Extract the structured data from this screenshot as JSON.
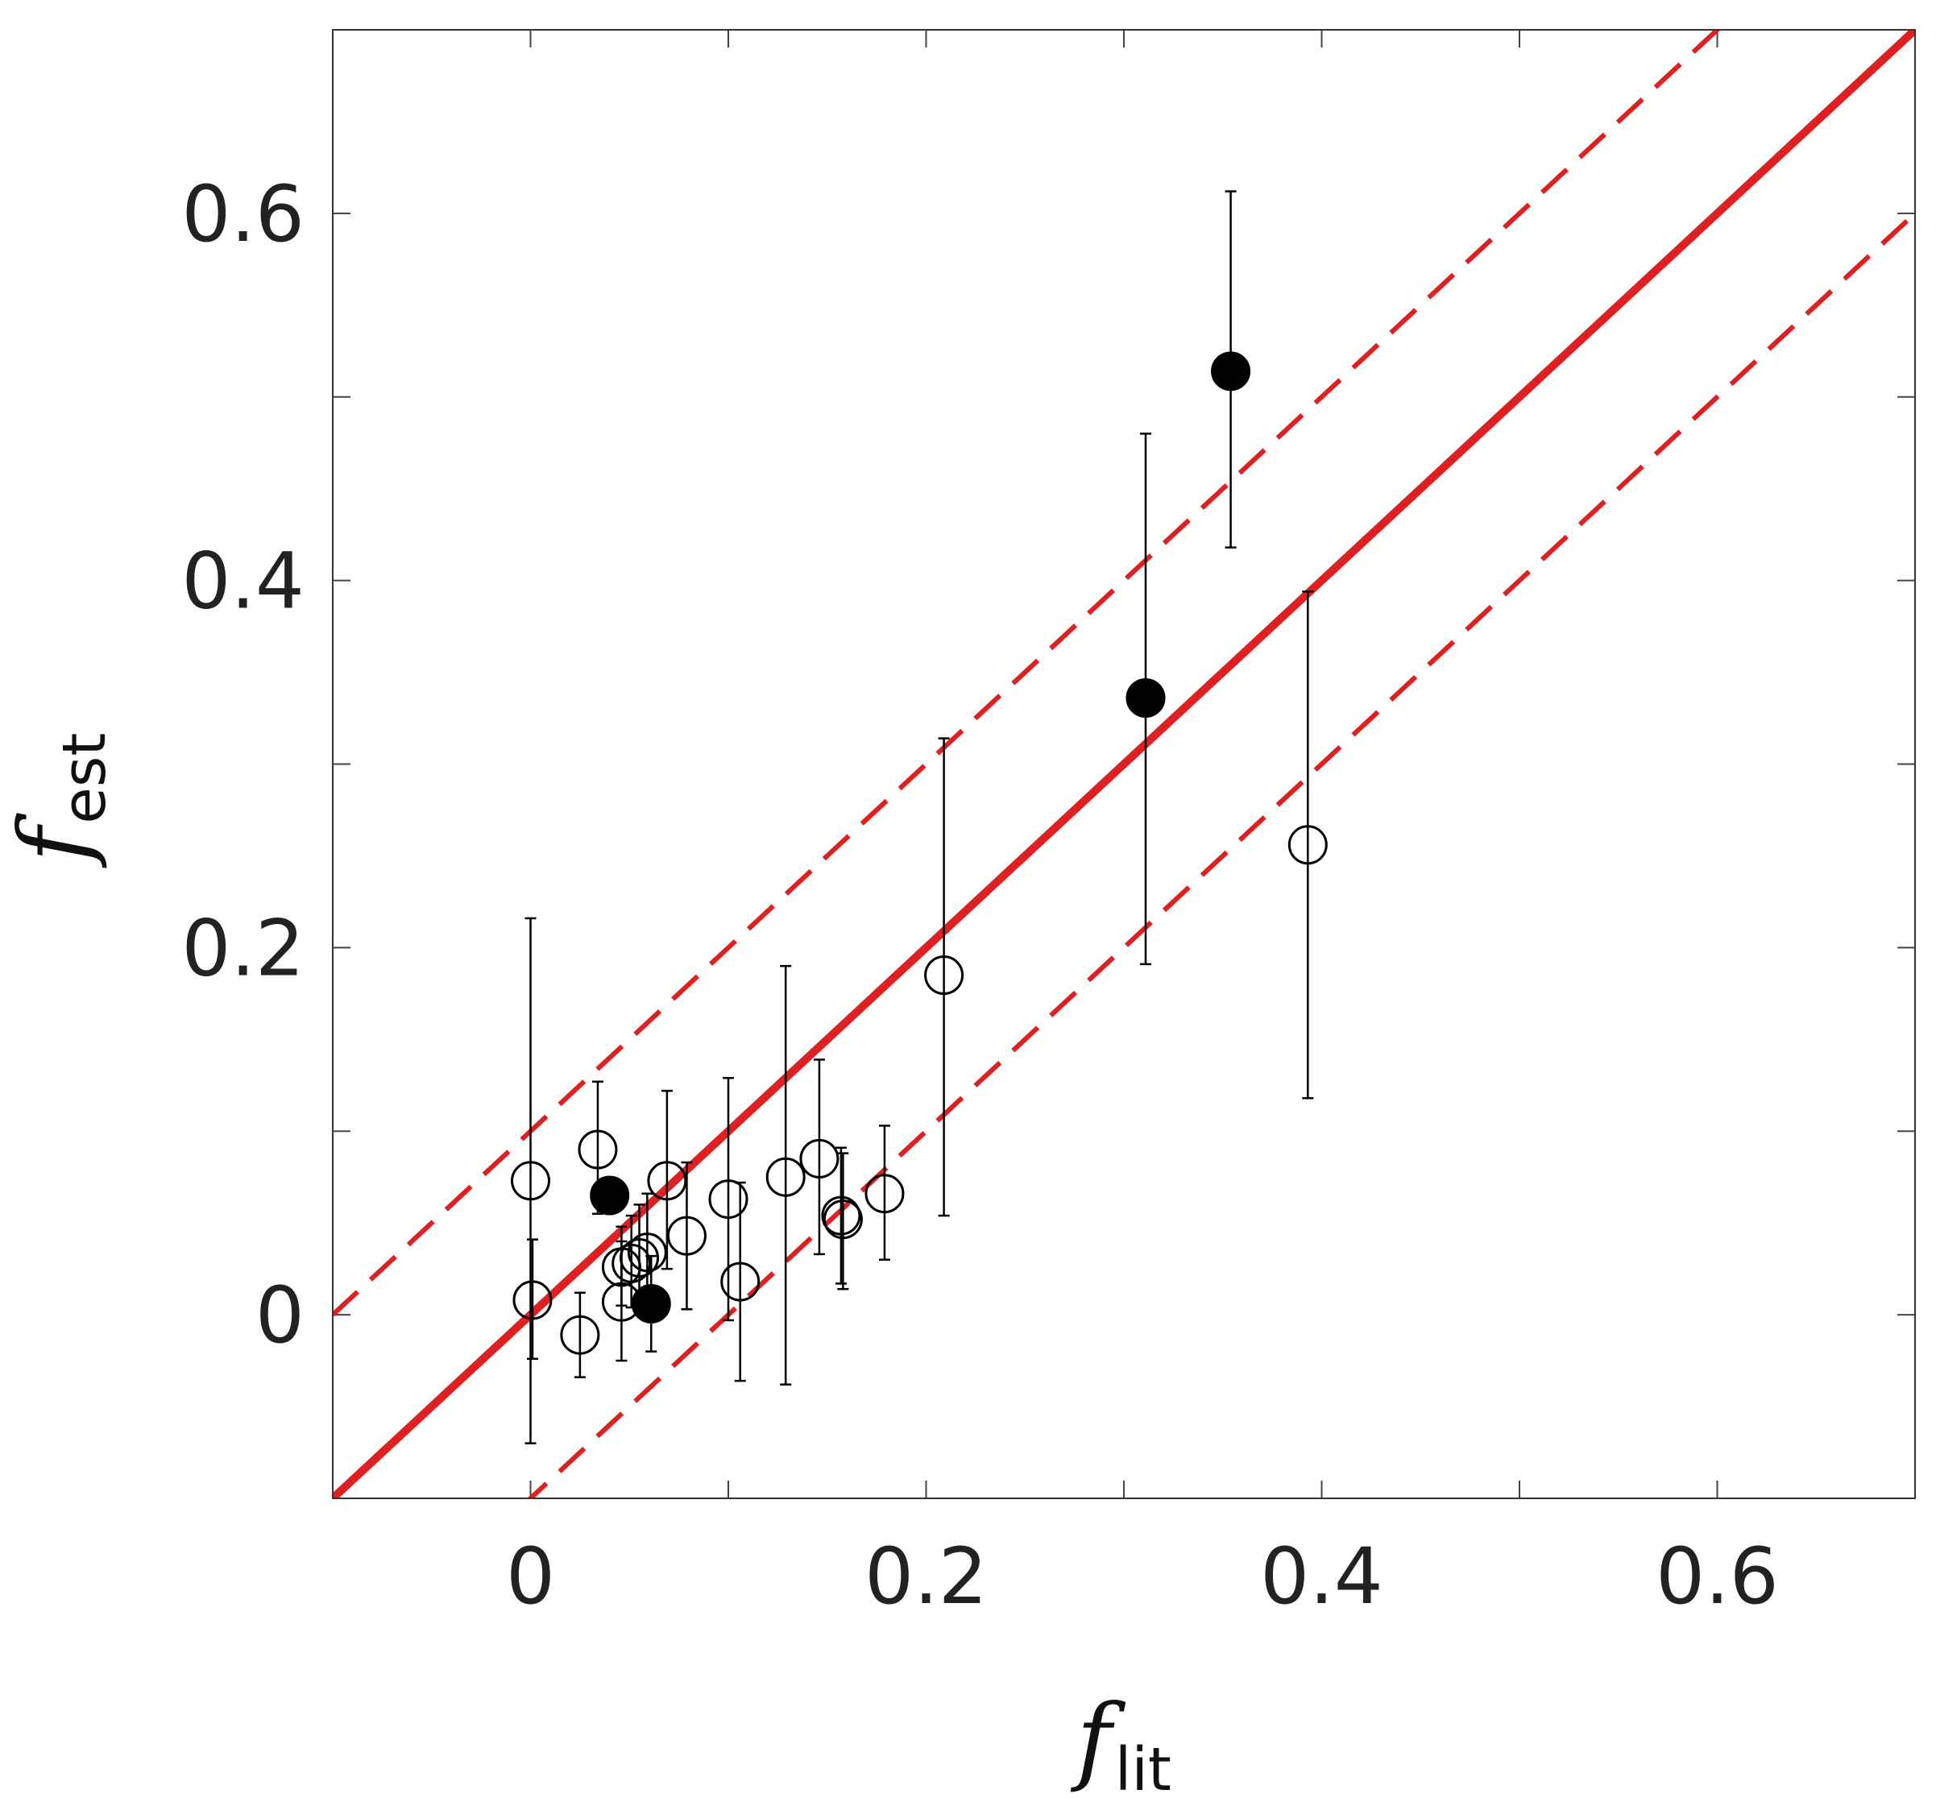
{
  "chart_data": {
    "type": "scatter",
    "title": "",
    "xlabel": {
      "main": "f",
      "sub": "lit"
    },
    "ylabel": {
      "main": "f",
      "sub": "est"
    },
    "xlim": [
      -0.1,
      0.7
    ],
    "ylim": [
      -0.1,
      0.7
    ],
    "xticks": [
      0,
      0.2,
      0.4,
      0.6
    ],
    "xtick_labels": [
      "0",
      "0.2",
      "0.4",
      "0.6"
    ],
    "yticks": [
      0,
      0.2,
      0.4,
      0.6
    ],
    "ytick_labels": [
      "0",
      "0.2",
      "0.4",
      "0.6"
    ],
    "minor_ticks": [
      0.1,
      0.3,
      0.5
    ],
    "grid": false,
    "legend": "none",
    "colors": {
      "reference": "#e02020",
      "points": "#000000"
    },
    "reference_lines": [
      {
        "kind": "identity",
        "offset": 0,
        "style": "solid"
      },
      {
        "kind": "identity",
        "offset": 0.1,
        "style": "dashed"
      },
      {
        "kind": "identity",
        "offset": -0.1,
        "style": "dashed"
      }
    ],
    "series": [
      {
        "marker": "open-circle",
        "points": [
          {
            "x": 0.0,
            "y": 0.073,
            "ylo": -0.07,
            "yhi": 0.216
          },
          {
            "x": 0.001,
            "y": 0.008,
            "ylo": -0.024,
            "yhi": 0.041
          },
          {
            "x": 0.025,
            "y": -0.011,
            "ylo": -0.034,
            "yhi": 0.012
          },
          {
            "x": 0.034,
            "y": 0.09,
            "ylo": 0.055,
            "yhi": 0.127
          },
          {
            "x": 0.046,
            "y": 0.026,
            "ylo": 0.005,
            "yhi": 0.048
          },
          {
            "x": 0.046,
            "y": 0.007,
            "ylo": -0.025,
            "yhi": 0.04
          },
          {
            "x": 0.051,
            "y": 0.028,
            "ylo": 0.004,
            "yhi": 0.054
          },
          {
            "x": 0.055,
            "y": 0.031,
            "ylo": 0.004,
            "yhi": 0.06
          },
          {
            "x": 0.059,
            "y": 0.034,
            "ylo": 0.003,
            "yhi": 0.066
          },
          {
            "x": 0.069,
            "y": 0.073,
            "ylo": 0.025,
            "yhi": 0.122
          },
          {
            "x": 0.079,
            "y": 0.043,
            "ylo": 0.003,
            "yhi": 0.083
          },
          {
            "x": 0.1,
            "y": 0.063,
            "ylo": -0.003,
            "yhi": 0.129
          },
          {
            "x": 0.106,
            "y": 0.018,
            "ylo": -0.036,
            "yhi": 0.072
          },
          {
            "x": 0.129,
            "y": 0.075,
            "ylo": -0.038,
            "yhi": 0.19
          },
          {
            "x": 0.146,
            "y": 0.085,
            "ylo": 0.033,
            "yhi": 0.139
          },
          {
            "x": 0.157,
            "y": 0.054,
            "ylo": 0.017,
            "yhi": 0.091
          },
          {
            "x": 0.158,
            "y": 0.052,
            "ylo": 0.014,
            "yhi": 0.088
          },
          {
            "x": 0.179,
            "y": 0.066,
            "ylo": 0.03,
            "yhi": 0.103
          },
          {
            "x": 0.209,
            "y": 0.185,
            "ylo": 0.054,
            "yhi": 0.314
          },
          {
            "x": 0.393,
            "y": 0.256,
            "ylo": 0.118,
            "yhi": 0.394
          }
        ]
      },
      {
        "marker": "filled-circle",
        "points": [
          {
            "x": 0.04,
            "y": 0.065,
            "ylo": 0.065,
            "yhi": 0.065
          },
          {
            "x": 0.061,
            "y": 0.006,
            "ylo": -0.02,
            "yhi": 0.032
          },
          {
            "x": 0.311,
            "y": 0.336,
            "ylo": 0.191,
            "yhi": 0.48
          },
          {
            "x": 0.354,
            "y": 0.514,
            "ylo": 0.418,
            "yhi": 0.612
          }
        ]
      }
    ]
  }
}
